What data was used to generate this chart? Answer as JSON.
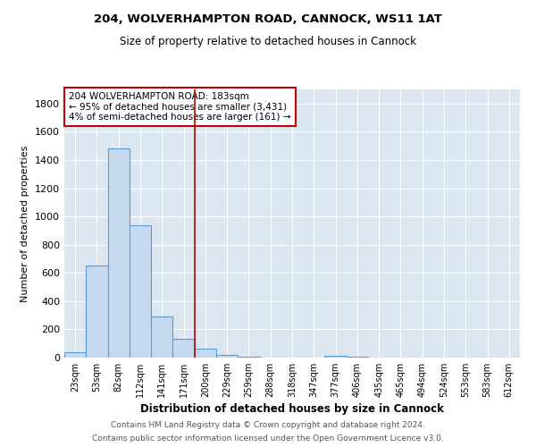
{
  "title1": "204, WOLVERHAMPTON ROAD, CANNOCK, WS11 1AT",
  "title2": "Size of property relative to detached houses in Cannock",
  "xlabel": "Distribution of detached houses by size in Cannock",
  "ylabel": "Number of detached properties",
  "categories": [
    "23sqm",
    "53sqm",
    "82sqm",
    "112sqm",
    "141sqm",
    "171sqm",
    "200sqm",
    "229sqm",
    "259sqm",
    "288sqm",
    "318sqm",
    "347sqm",
    "377sqm",
    "406sqm",
    "435sqm",
    "465sqm",
    "494sqm",
    "524sqm",
    "553sqm",
    "583sqm",
    "612sqm"
  ],
  "values": [
    40,
    650,
    1480,
    940,
    290,
    130,
    65,
    20,
    5,
    3,
    2,
    2,
    15,
    5,
    0,
    0,
    0,
    0,
    0,
    0,
    0
  ],
  "bar_color": "#c5d9f0",
  "bar_edge_color": "#5b9bd5",
  "vline_color": "#c00000",
  "annotation_text": "204 WOLVERHAMPTON ROAD: 183sqm\n← 95% of detached houses are smaller (3,431)\n4% of semi-detached houses are larger (161) →",
  "annotation_box_color": "#ffffff",
  "annotation_box_edge": "#c00000",
  "ylim": [
    0,
    1900
  ],
  "yticks": [
    0,
    200,
    400,
    600,
    800,
    1000,
    1200,
    1400,
    1600,
    1800
  ],
  "bg_color": "#dce6f1",
  "grid_color": "#ffffff",
  "footer1": "Contains HM Land Registry data © Crown copyright and database right 2024.",
  "footer2": "Contains public sector information licensed under the Open Government Licence v3.0."
}
